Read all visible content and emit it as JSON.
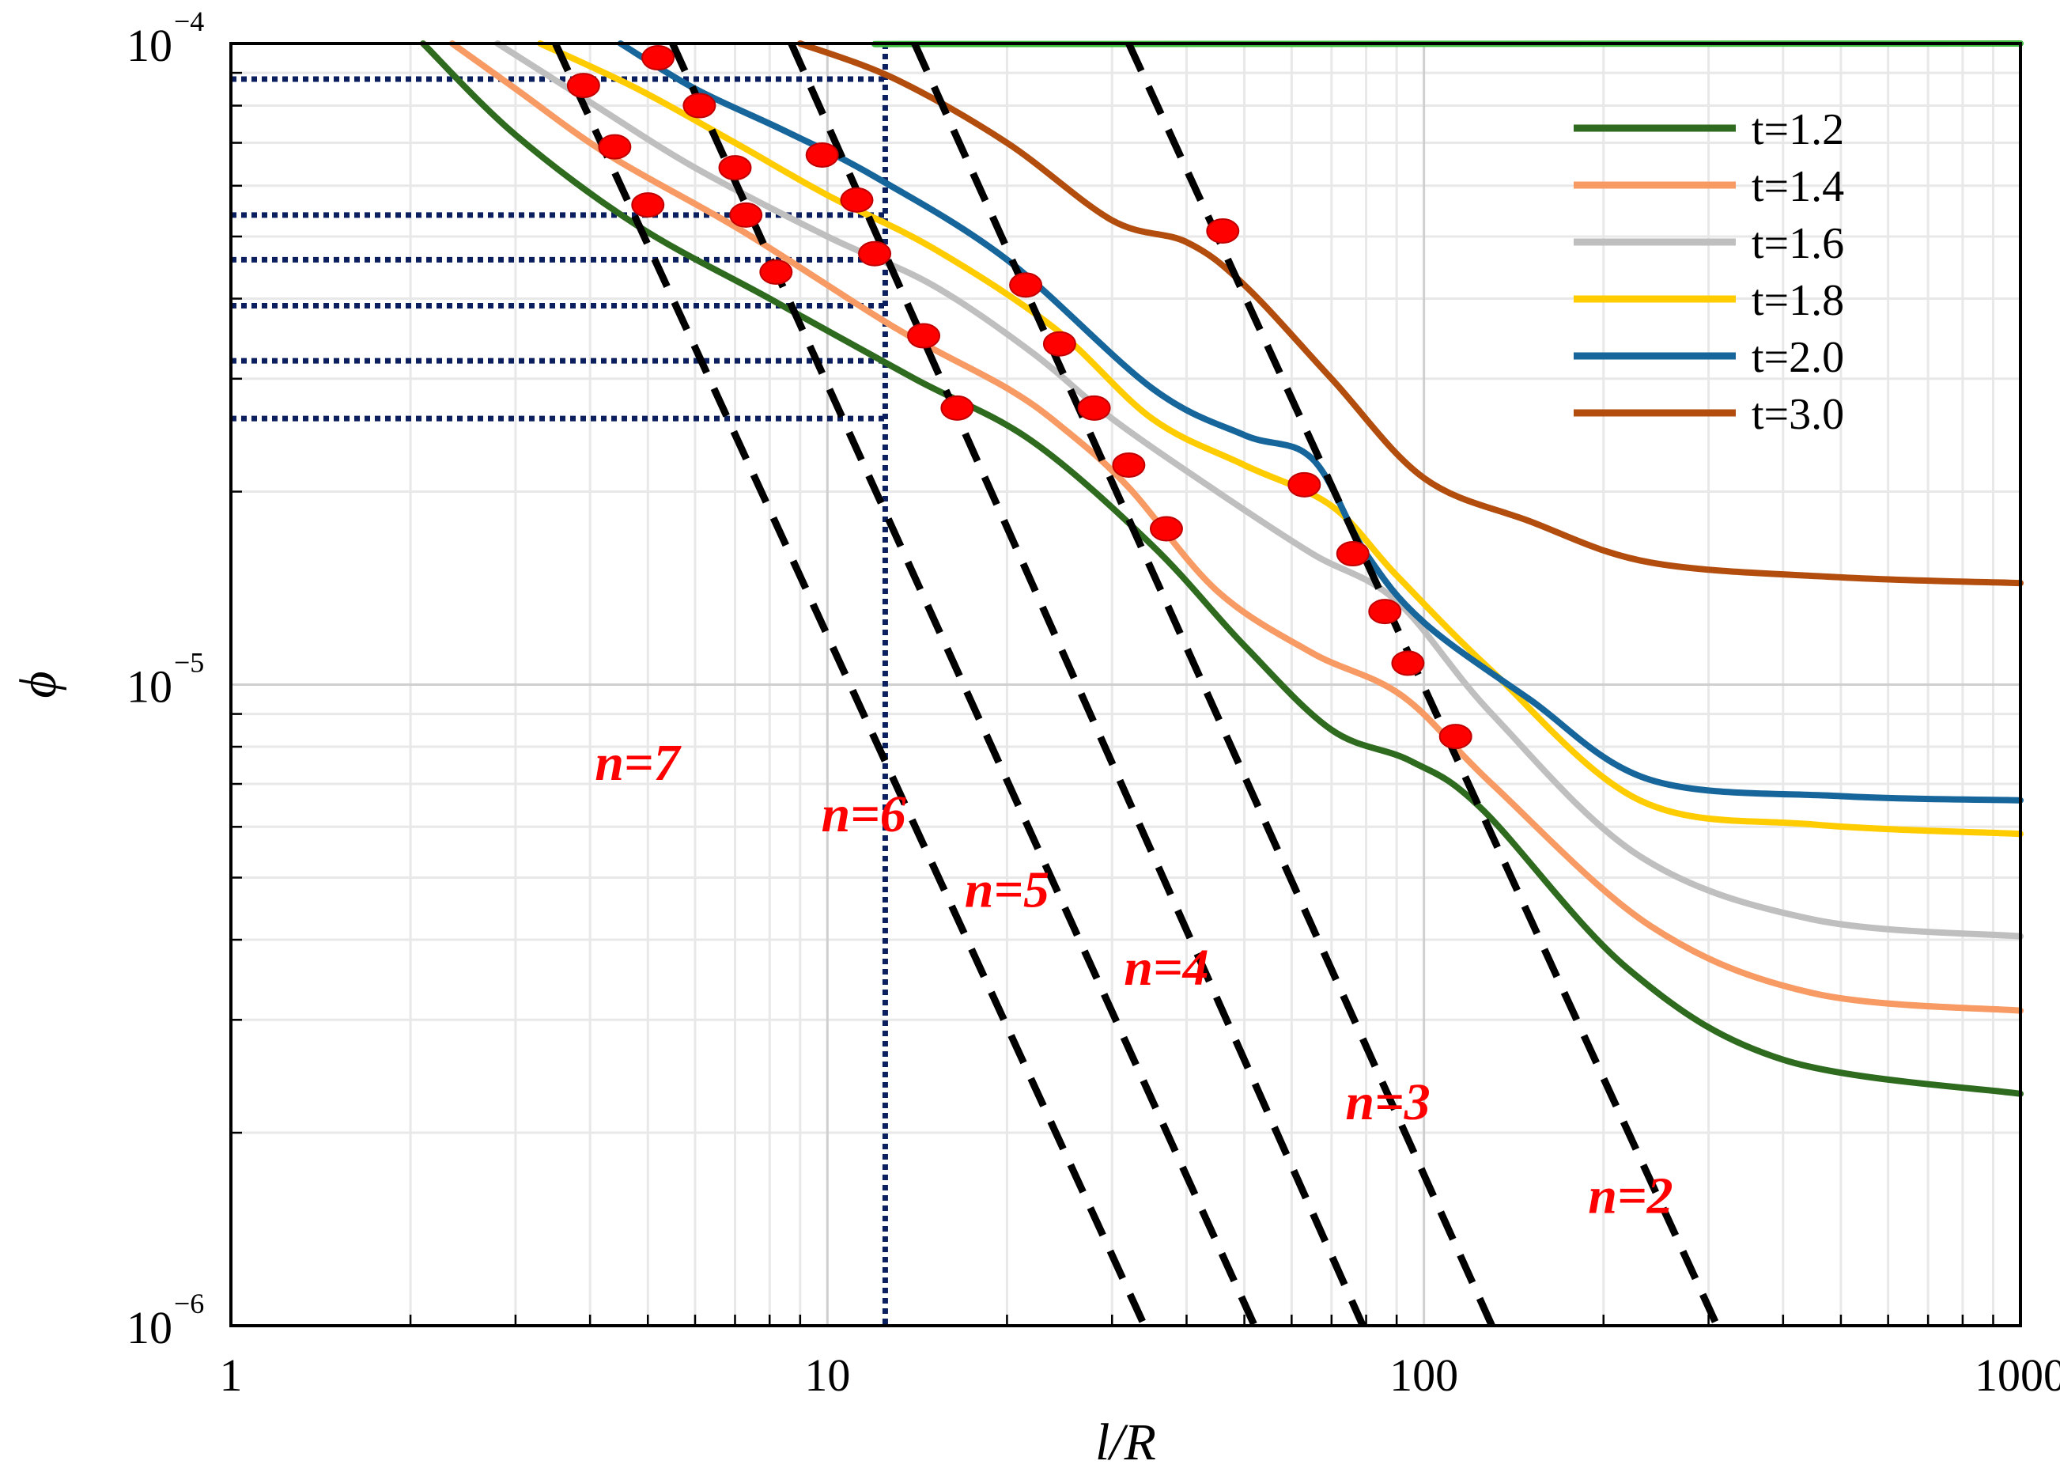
{
  "chart_data": {
    "type": "line",
    "scale": {
      "x": "log",
      "y": "log"
    },
    "xlabel": "l/R",
    "ylabel": "ϕ",
    "xlim": [
      1,
      1000
    ],
    "ylim": [
      1e-06,
      0.0001
    ],
    "grid": true,
    "legend_position": "top-right",
    "x_ticks": [
      {
        "value": 1,
        "label": "1"
      },
      {
        "value": 10,
        "label": "10"
      },
      {
        "value": 100,
        "label": "100"
      },
      {
        "value": 1000,
        "label": "1000"
      }
    ],
    "y_ticks": [
      {
        "value": 1e-06,
        "base": "10",
        "exp": "−6"
      },
      {
        "value": 1e-05,
        "base": "10",
        "exp": "−5"
      },
      {
        "value": 0.0001,
        "base": "10",
        "exp": "−4"
      }
    ],
    "series": [
      {
        "name": "t=1.2",
        "color": "#2e6b1f",
        "points": [
          [
            2.1,
            0.0001
          ],
          [
            3,
            7.2e-05
          ],
          [
            4.8,
            5.2e-05
          ],
          [
            8,
            4e-05
          ],
          [
            14,
            3e-05
          ],
          [
            22,
            2.4e-05
          ],
          [
            35,
            1.65e-05
          ],
          [
            50,
            1.15e-05
          ],
          [
            70,
            8.5e-06
          ],
          [
            95,
            7.6e-06
          ],
          [
            125,
            6.4e-06
          ],
          [
            220,
            3.6e-06
          ],
          [
            400,
            2.6e-06
          ],
          [
            1050,
            2.3e-06
          ]
        ]
      },
      {
        "name": "t=1.4",
        "color": "#f79a63",
        "points": [
          [
            2.35,
            0.0001
          ],
          [
            3,
            8.5e-05
          ],
          [
            4.3,
            6.7e-05
          ],
          [
            7.2,
            5.1e-05
          ],
          [
            13,
            3.6e-05
          ],
          [
            20,
            2.9e-05
          ],
          [
            25,
            2.5e-05
          ],
          [
            32,
            2.03e-05
          ],
          [
            45,
            1.4e-05
          ],
          [
            65,
            1.12e-05
          ],
          [
            92,
            9.6e-06
          ],
          [
            130,
            7e-06
          ],
          [
            240,
            4.2e-06
          ],
          [
            450,
            3.3e-06
          ],
          [
            1050,
            3.1e-06
          ]
        ]
      },
      {
        "name": "t=1.6",
        "color": "#bfbfbf",
        "points": [
          [
            2.8,
            0.0001
          ],
          [
            4,
            8.1e-05
          ],
          [
            6,
            6.4e-05
          ],
          [
            10,
            5e-05
          ],
          [
            15,
            4.2e-05
          ],
          [
            22,
            3.3e-05
          ],
          [
            30,
            2.6e-05
          ],
          [
            45,
            2e-05
          ],
          [
            65,
            1.6e-05
          ],
          [
            90,
            1.35e-05
          ],
          [
            130,
            9e-06
          ],
          [
            230,
            5.4e-06
          ],
          [
            450,
            4.3e-06
          ],
          [
            1050,
            4.05e-06
          ]
        ]
      },
      {
        "name": "t=1.8",
        "color": "#ffcc00",
        "points": [
          [
            3.3,
            0.0001
          ],
          [
            4.8,
            8.5e-05
          ],
          [
            7,
            7e-05
          ],
          [
            10,
            5.8e-05
          ],
          [
            15,
            4.8e-05
          ],
          [
            24,
            3.6e-05
          ],
          [
            35,
            2.6e-05
          ],
          [
            50,
            2.2e-05
          ],
          [
            70,
            1.9e-05
          ],
          [
            90,
            1.48e-05
          ],
          [
            130,
            1.05e-05
          ],
          [
            230,
            6.6e-06
          ],
          [
            450,
            6.05e-06
          ],
          [
            1050,
            5.85e-06
          ]
        ]
      },
      {
        "name": "t=2.0",
        "color": "#17669b",
        "points": [
          [
            4.5,
            0.0001
          ],
          [
            6,
            8.5e-05
          ],
          [
            8.5,
            7.3e-05
          ],
          [
            12,
            6.2e-05
          ],
          [
            20,
            4.6e-05
          ],
          [
            35,
            2.9e-05
          ],
          [
            50,
            2.45e-05
          ],
          [
            65,
            2.25e-05
          ],
          [
            80,
            1.6e-05
          ],
          [
            100,
            1.25e-05
          ],
          [
            150,
            9.5e-06
          ],
          [
            240,
            7.1e-06
          ],
          [
            500,
            6.7e-06
          ],
          [
            1050,
            6.6e-06
          ]
        ]
      },
      {
        "name": "t=3.0",
        "color": "#b34d0e",
        "points": [
          [
            9,
            0.0001
          ],
          [
            13,
            8.8e-05
          ],
          [
            20,
            7e-05
          ],
          [
            30,
            5.3e-05
          ],
          [
            40,
            4.9e-05
          ],
          [
            50,
            4.2e-05
          ],
          [
            70,
            3e-05
          ],
          [
            100,
            2.1e-05
          ],
          [
            150,
            1.8e-05
          ],
          [
            240,
            1.55e-05
          ],
          [
            500,
            1.47e-05
          ],
          [
            1050,
            1.44e-05
          ]
        ]
      },
      {
        "name": "",
        "color": "#3cb93c",
        "points": [
          [
            12,
            9.98e-05
          ],
          [
            1050,
            0.0001
          ]
        ]
      }
    ],
    "dashed_lines": [
      {
        "label": "n=7",
        "x_top": 3.5,
        "x_bottom": 34
      },
      {
        "label": "n=6",
        "x_top": 5.5,
        "x_bottom": 52
      },
      {
        "label": "n=5",
        "x_top": 8.7,
        "x_bottom": 79
      },
      {
        "label": "n=4",
        "x_top": 14,
        "x_bottom": 130
      },
      {
        "label": "n=3",
        "x_top": 32,
        "x_bottom": 310
      }
    ],
    "dashed_labels": [
      {
        "text": "n=7",
        "x": 4.8,
        "y": 7.1e-06
      },
      {
        "text": "n=6",
        "x": 11.5,
        "y": 5.9e-06
      },
      {
        "text": "n=5",
        "x": 20,
        "y": 4.5e-06
      },
      {
        "text": "n=4",
        "x": 37,
        "y": 3.4e-06
      },
      {
        "text": "n=3",
        "x": 87,
        "y": 2.1e-06
      },
      {
        "text": "n=2",
        "x": 222,
        "y": 1.5e-06
      }
    ],
    "markers": [
      [
        3.9,
        8.6e-05
      ],
      [
        5.2,
        9.5e-05
      ],
      [
        4.4,
        6.9e-05
      ],
      [
        6.1,
        8e-05
      ],
      [
        7,
        6.4e-05
      ],
      [
        9.8,
        6.7e-05
      ],
      [
        5,
        5.6e-05
      ],
      [
        7.3,
        5.4e-05
      ],
      [
        11.2,
        5.7e-05
      ],
      [
        8.2,
        4.4e-05
      ],
      [
        12,
        4.7e-05
      ],
      [
        14.5,
        3.5e-05
      ],
      [
        21.5,
        4.2e-05
      ],
      [
        24.5,
        3.4e-05
      ],
      [
        16.5,
        2.7e-05
      ],
      [
        28,
        2.7e-05
      ],
      [
        32,
        2.2e-05
      ],
      [
        37,
        1.75e-05
      ],
      [
        46,
        5.1e-05
      ],
      [
        63,
        2.05e-05
      ],
      [
        76,
        1.6e-05
      ],
      [
        86,
        1.3e-05
      ],
      [
        94,
        1.08e-05
      ],
      [
        113,
        8.3e-06
      ]
    ],
    "reference_values": {
      "x": 12.5,
      "y": [
        8.8e-05,
        5.4e-05,
        4.6e-05,
        3.9e-05,
        3.2e-05,
        2.6e-05
      ]
    }
  }
}
